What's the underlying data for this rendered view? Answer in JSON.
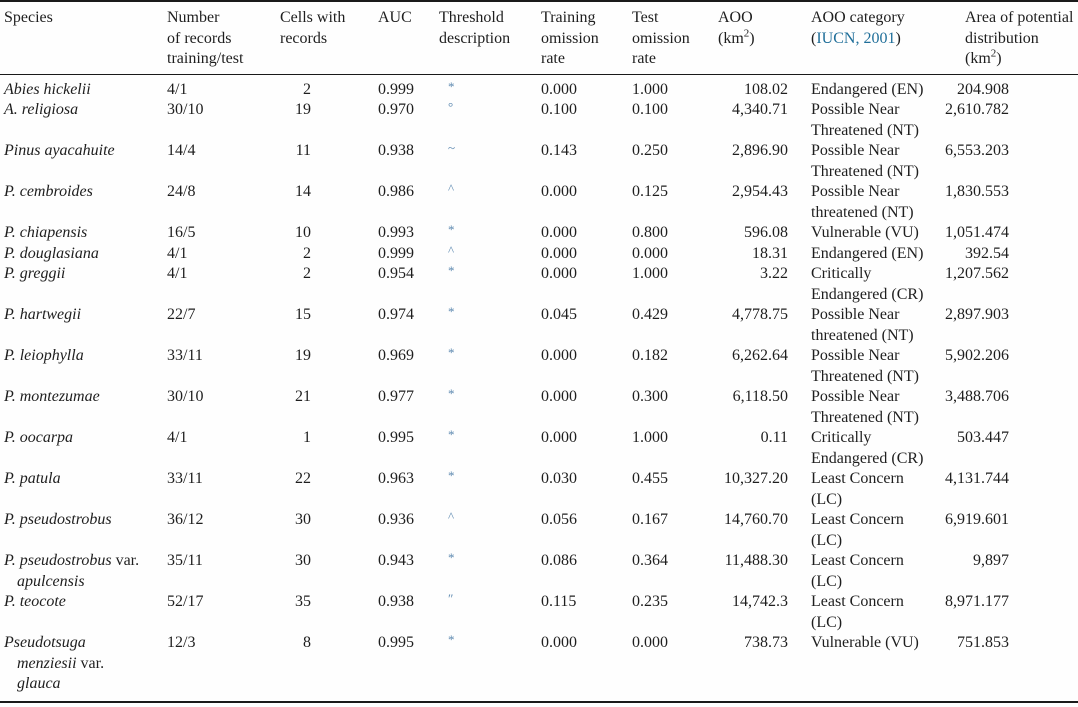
{
  "colors": {
    "citation_link": "#1f6e99",
    "threshold_mark": "#5d89b0",
    "rule": "#1a1a1a"
  },
  "table": {
    "header": {
      "species": "Species",
      "records": "Number\nof records\ntraining/test",
      "cells": "Cells with\nrecords",
      "auc": "AUC",
      "threshold": "Threshold\ndescription",
      "training": "Training\nomission\nrate",
      "test": "Test\nomission\nrate",
      "aoo": "AOO",
      "aoo_unit": {
        "pre": "(km",
        "sup": "2",
        "post": ")"
      },
      "category": "AOO category",
      "category_cite": {
        "pre": "(",
        "text": "IUCN, 2001",
        "post": ")"
      },
      "area": "Area of potential\ndistribution",
      "area_unit": {
        "pre": "(km",
        "sup": "2",
        "post": ")"
      }
    },
    "rows": [
      {
        "species": [
          {
            "t": "Abies hickelii",
            "i": true
          }
        ],
        "records": "4/1",
        "cells": "2",
        "auc": "0.999",
        "threshold": "*",
        "training": "0.000",
        "test": "1.000",
        "aoo": "108.02",
        "category": "Endangered (EN)",
        "area": "204.908"
      },
      {
        "species": [
          {
            "t": "A. religiosa",
            "i": true
          }
        ],
        "records": "30/10",
        "cells": "19",
        "auc": "0.970",
        "threshold": "°",
        "training": "0.100",
        "test": "0.100",
        "aoo": "4,340.71",
        "category": "Possible Near\nThreatened (NT)",
        "area": "2,610.782"
      },
      {
        "species": [
          {
            "t": "Pinus ayacahuite",
            "i": true
          }
        ],
        "records": "14/4",
        "cells": "11",
        "auc": "0.938",
        "threshold": "~",
        "training": "0.143",
        "test": "0.250",
        "aoo": "2,896.90",
        "category": "Possible Near\nThreatened (NT)",
        "area": "6,553.203"
      },
      {
        "species": [
          {
            "t": "P. cembroides",
            "i": true
          }
        ],
        "records": "24/8",
        "cells": "14",
        "auc": "0.986",
        "threshold": "^",
        "training": "0.000",
        "test": "0.125",
        "aoo": "2,954.43",
        "category": "Possible Near\nthreatened (NT)",
        "area": "1,830.553"
      },
      {
        "species": [
          {
            "t": "P. chiapensis",
            "i": true
          }
        ],
        "records": "16/5",
        "cells": "10",
        "auc": "0.993",
        "threshold": "*",
        "training": "0.000",
        "test": "0.800",
        "aoo": "596.08",
        "category": "Vulnerable (VU)",
        "area": "1,051.474"
      },
      {
        "species": [
          {
            "t": "P. douglasiana",
            "i": true
          }
        ],
        "records": "4/1",
        "cells": "2",
        "auc": "0.999",
        "threshold": "^",
        "training": "0.000",
        "test": "0.000",
        "aoo": "18.31",
        "category": "Endangered (EN)",
        "area": "392.54"
      },
      {
        "species": [
          {
            "t": "P. greggii",
            "i": true
          }
        ],
        "records": "4/1",
        "cells": "2",
        "auc": "0.954",
        "threshold": "*",
        "training": "0.000",
        "test": "1.000",
        "aoo": "3.22",
        "category": "Critically\nEndangered (CR)",
        "area": "1,207.562"
      },
      {
        "species": [
          {
            "t": "P. hartwegii",
            "i": true
          }
        ],
        "records": "22/7",
        "cells": "15",
        "auc": "0.974",
        "threshold": "*",
        "training": "0.045",
        "test": "0.429",
        "aoo": "4,778.75",
        "category": "Possible Near\nthreatened (NT)",
        "area": "2,897.903"
      },
      {
        "species": [
          {
            "t": "P. leiophylla",
            "i": true
          }
        ],
        "records": "33/11",
        "cells": "19",
        "auc": "0.969",
        "threshold": "*",
        "training": "0.000",
        "test": "0.182",
        "aoo": "6,262.64",
        "category": "Possible Near\nThreatened (NT)",
        "area": "5,902.206"
      },
      {
        "species": [
          {
            "t": "P. montezumae",
            "i": true
          }
        ],
        "records": "30/10",
        "cells": "21",
        "auc": "0.977",
        "threshold": "*",
        "training": "0.000",
        "test": "0.300",
        "aoo": "6,118.50",
        "category": "Possible Near\nThreatened (NT)",
        "area": "3,488.706"
      },
      {
        "species": [
          {
            "t": "P. oocarpa",
            "i": true
          }
        ],
        "records": "4/1",
        "cells": "1",
        "auc": "0.995",
        "threshold": "*",
        "training": "0.000",
        "test": "1.000",
        "aoo": "0.11",
        "category": "Critically\nEndangered (CR)",
        "area": "503.447"
      },
      {
        "species": [
          {
            "t": "P. patula",
            "i": true
          }
        ],
        "records": "33/11",
        "cells": "22",
        "auc": "0.963",
        "threshold": "*",
        "training": "0.030",
        "test": "0.455",
        "aoo": "10,327.20",
        "category": "Least Concern\n(LC)",
        "area": "4,131.744"
      },
      {
        "species": [
          {
            "t": "P. pseudostrobus",
            "i": true
          }
        ],
        "records": "36/12",
        "cells": "30",
        "auc": "0.936",
        "threshold": "^",
        "training": "0.056",
        "test": "0.167",
        "aoo": "14,760.70",
        "category": "Least Concern\n(LC)",
        "area": "6,919.601"
      },
      {
        "species": [
          {
            "t": "P. pseudostrobus ",
            "i": true
          },
          {
            "t": "var.",
            "i": false
          },
          {
            "t": "\napulcensis",
            "i": true
          }
        ],
        "records": "35/11",
        "cells": "30",
        "auc": "0.943",
        "threshold": "*",
        "training": "0.086",
        "test": "0.364",
        "aoo": "11,488.30",
        "category": "Least Concern\n(LC)",
        "area": "9,897"
      },
      {
        "species": [
          {
            "t": "P. teocote",
            "i": true
          }
        ],
        "records": "52/17",
        "cells": "35",
        "auc": "0.938",
        "threshold": "″",
        "training": "0.115",
        "test": "0.235",
        "aoo": "14,742.3",
        "category": "Least Concern\n(LC)",
        "area": "8,971.177"
      },
      {
        "species": [
          {
            "t": "Pseudotsuga\nmenziesii ",
            "i": true
          },
          {
            "t": "var.",
            "i": false
          },
          {
            "t": "\nglauca",
            "i": true
          }
        ],
        "records": "12/3",
        "cells": "8",
        "auc": "0.995",
        "threshold": "*",
        "training": "0.000",
        "test": "0.000",
        "aoo": "738.73",
        "category": "Vulnerable (VU)",
        "area": "751.853"
      }
    ]
  }
}
